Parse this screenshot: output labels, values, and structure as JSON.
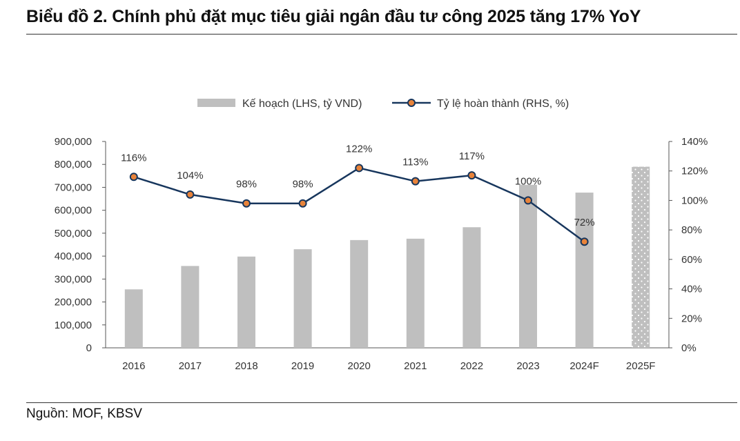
{
  "title": "Biểu đồ 2. Chính phủ đặt mục tiêu giải ngân đầu tư công 2025 tăng 17% YoY",
  "source": "Nguồn: MOF, KBSV",
  "chart_data": {
    "type": "bar+line",
    "categories": [
      "2016",
      "2017",
      "2018",
      "2019",
      "2020",
      "2021",
      "2022",
      "2023",
      "2024F",
      "2025F"
    ],
    "series": [
      {
        "name": "Kế hoạch (LHS, tỷ VND)",
        "type": "bar",
        "axis": "left",
        "color": "#bfbfbf",
        "values": [
          255000,
          357000,
          398000,
          430000,
          470000,
          476000,
          526000,
          711000,
          677000,
          790000
        ],
        "forecast_pattern_categories": [
          "2025F"
        ]
      },
      {
        "name": "Tỷ lệ hoàn thành (RHS, %)",
        "type": "line",
        "axis": "right",
        "color": "#17365d",
        "marker_color": "#e8833a",
        "values": [
          116,
          104,
          98,
          98,
          122,
          113,
          117,
          100,
          72,
          null
        ],
        "labels": [
          "116%",
          "104%",
          "98%",
          "98%",
          "122%",
          "113%",
          "117%",
          "100%",
          "72%",
          ""
        ]
      }
    ],
    "left_axis": {
      "min": 0,
      "max": 900000,
      "step": 100000,
      "ticks": [
        "0",
        "100,000",
        "200,000",
        "300,000",
        "400,000",
        "500,000",
        "600,000",
        "700,000",
        "800,000",
        "900,000"
      ]
    },
    "right_axis": {
      "min": 0,
      "max": 140,
      "step": 20,
      "ticks": [
        "0%",
        "20%",
        "40%",
        "60%",
        "80%",
        "100%",
        "120%",
        "140%"
      ]
    },
    "legend": {
      "position": "top",
      "items": [
        "Kế hoạch (LHS, tỷ VND)",
        "Tỷ lệ hoàn thành (RHS, %)"
      ]
    },
    "grid": false
  }
}
